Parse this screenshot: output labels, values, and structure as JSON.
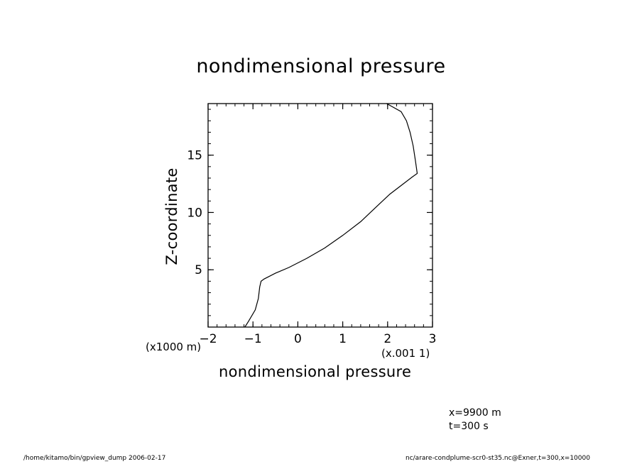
{
  "chart_data": {
    "type": "line",
    "title": "nondimensional pressure",
    "xlabel": "nondimensional pressure",
    "ylabel": "Z-coordinate",
    "x_scale_label": "(x.001 1)",
    "y_scale_label": "(x1000 m)",
    "xlim": [
      -2,
      3
    ],
    "ylim": [
      0,
      19.5
    ],
    "x_ticks": [
      -2,
      -1,
      0,
      1,
      2,
      3
    ],
    "y_ticks": [
      5,
      10,
      15
    ],
    "x_tick_labels": [
      "−2",
      "−1",
      "0",
      "1",
      "2",
      "3"
    ],
    "y_tick_labels": [
      "5",
      "10",
      "15"
    ],
    "grid": false,
    "series": [
      {
        "x": [
          -1.18,
          -1.1,
          -0.95,
          -0.88,
          -0.85,
          -0.82,
          -0.75,
          -0.5,
          -0.2,
          0.2,
          0.6,
          1.0,
          1.4,
          1.75,
          2.05,
          2.35,
          2.55,
          2.66,
          2.62,
          2.57,
          2.5,
          2.42,
          2.3,
          1.98
        ],
        "y": [
          0.0,
          0.5,
          1.5,
          2.5,
          3.5,
          4.0,
          4.2,
          4.7,
          5.2,
          6.0,
          6.9,
          8.0,
          9.2,
          10.5,
          11.6,
          12.5,
          13.1,
          13.4,
          14.5,
          15.8,
          17.0,
          18.0,
          18.8,
          19.5
        ]
      }
    ]
  },
  "annotations": {
    "position": "x=9900  m",
    "time": "t=300  s"
  },
  "footer": {
    "left": "/home/kitamo/bin/gpview_dump  2006-02-17",
    "right": "nc/arare-condplume-scr0-st35.nc@Exner,t=300,x=10000"
  }
}
